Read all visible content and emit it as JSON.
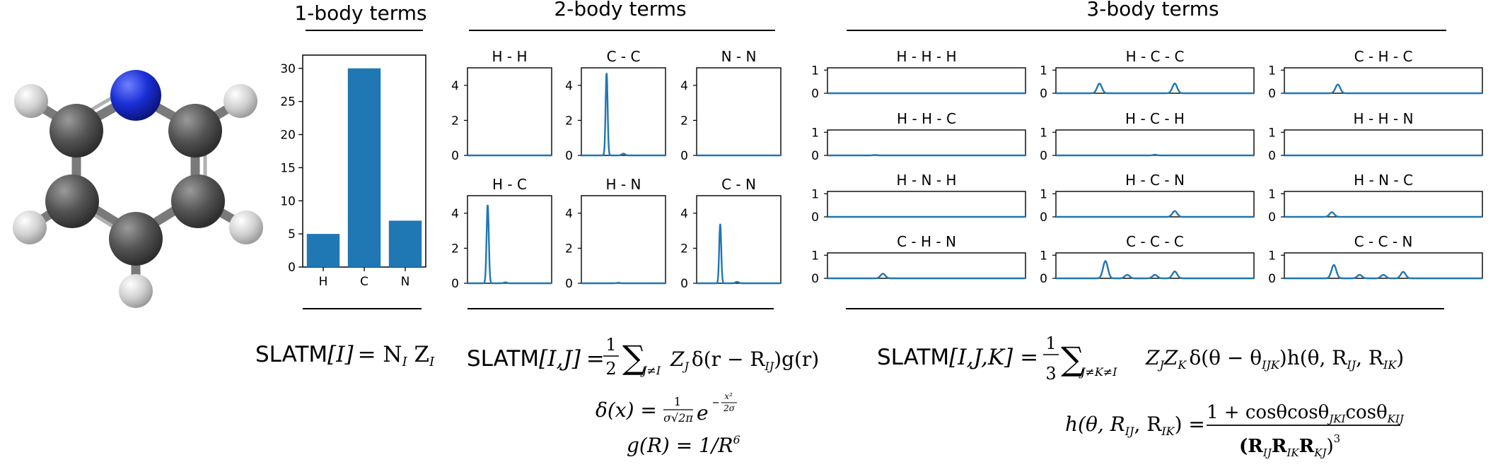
{
  "sections": {
    "one_body": "1-body terms",
    "two_body": "2-body terms",
    "three_body": "3-body terms"
  },
  "colors": {
    "line": "#1f77b4",
    "bar": "#1f77b4",
    "nitrogen": "#1a2fd6",
    "carbon": "#4a4a4a",
    "hydrogen": "#d6d6d6"
  },
  "molecule": {
    "name": "pyridine",
    "icon": "pyridine-ball-and-stick"
  },
  "chart_data": [
    {
      "type": "bar",
      "id": "one-body",
      "categories": [
        "H",
        "C",
        "N"
      ],
      "values": [
        5,
        30,
        7
      ],
      "ylim": [
        0,
        32
      ],
      "yticks": [
        "0",
        "5",
        "10",
        "15",
        "20",
        "25",
        "30"
      ],
      "ytick_values": [
        0,
        5,
        10,
        15,
        20,
        25,
        30
      ]
    },
    {
      "type": "line",
      "id": "two-body",
      "ylim": [
        0,
        5
      ],
      "yticks": [
        "0",
        "2",
        "4"
      ],
      "ytick_values": [
        0,
        2,
        4
      ],
      "panels": [
        {
          "title": "H - H",
          "peaks": []
        },
        {
          "title": "C - C",
          "peaks": [
            [
              0.3,
              4.7,
              0.012
            ],
            [
              0.5,
              0.1,
              0.02
            ]
          ]
        },
        {
          "title": "N - N",
          "peaks": []
        },
        {
          "title": "H - C",
          "peaks": [
            [
              0.24,
              4.5,
              0.013
            ],
            [
              0.45,
              0.05,
              0.02
            ]
          ]
        },
        {
          "title": "H - N",
          "peaks": [
            [
              0.44,
              0.03,
              0.02
            ]
          ]
        },
        {
          "title": "C - N",
          "peaks": [
            [
              0.28,
              3.4,
              0.012
            ],
            [
              0.48,
              0.08,
              0.02
            ]
          ]
        }
      ]
    },
    {
      "type": "line",
      "id": "three-body",
      "ylim": [
        0,
        1.1
      ],
      "yticks": [
        "1",
        "0"
      ],
      "ytick_values": [
        1,
        0
      ],
      "panels": [
        {
          "title": "H - H - H",
          "peaks": []
        },
        {
          "title": "H - C - C",
          "peaks": [
            [
              0.22,
              0.42,
              0.012
            ],
            [
              0.6,
              0.42,
              0.012
            ]
          ]
        },
        {
          "title": "C - H - C",
          "peaks": [
            [
              0.27,
              0.38,
              0.012
            ]
          ]
        },
        {
          "title": "H - H - C",
          "peaks": [
            [
              0.24,
              0.02,
              0.01
            ]
          ]
        },
        {
          "title": "H - C - H",
          "peaks": [
            [
              0.5,
              0.03,
              0.01
            ]
          ]
        },
        {
          "title": "H - H - N",
          "peaks": []
        },
        {
          "title": "H - N - H",
          "peaks": []
        },
        {
          "title": "H - C - N",
          "peaks": [
            [
              0.6,
              0.25,
              0.012
            ]
          ]
        },
        {
          "title": "H - N - C",
          "peaks": [
            [
              0.24,
              0.2,
              0.012
            ]
          ]
        },
        {
          "title": "C - H - N",
          "peaks": [
            [
              0.28,
              0.2,
              0.012
            ]
          ]
        },
        {
          "title": "C - C - C",
          "peaks": [
            [
              0.25,
              0.75,
              0.012
            ],
            [
              0.36,
              0.15,
              0.012
            ],
            [
              0.5,
              0.15,
              0.012
            ],
            [
              0.6,
              0.3,
              0.012
            ]
          ]
        },
        {
          "title": "C - C - N",
          "peaks": [
            [
              0.25,
              0.58,
              0.012
            ],
            [
              0.38,
              0.15,
              0.012
            ],
            [
              0.5,
              0.15,
              0.012
            ],
            [
              0.6,
              0.28,
              0.012
            ]
          ]
        }
      ]
    }
  ],
  "formulas": {
    "slatm_1": {
      "prefix": "SLATM",
      "arg": "[I]",
      "rhs": "= N",
      "sub1": "I",
      "z": " Z",
      "sub2": "I"
    },
    "slatm_2": {
      "prefix": "SLATM",
      "arg": "[I,J]",
      "eq": "=",
      "frac_num": "1",
      "frac_den": "2",
      "sum": "∑",
      "sum_sub": "J≠I",
      "body": "Z",
      "body_sub": "J",
      "rest": "δ(r − R",
      "rest_sub": "IJ",
      "tail": ")g(r)"
    },
    "delta": {
      "lhs": "δ(x) =",
      "num": "1",
      "den": "σ√2π",
      "exp_base": "e",
      "exp_num": "x²",
      "exp_den": "2σ"
    },
    "g": {
      "text": "g(R) = 1/R",
      "sup": "6"
    },
    "slatm_3": {
      "prefix": "SLATM",
      "arg": "[I,J,K]",
      "eq": "=",
      "frac_num": "1",
      "frac_den": "3",
      "sum": "∑",
      "sum_sub": "J≠K≠I",
      "body": "Z",
      "body_sub1": "J",
      "body_mid": "Z",
      "body_sub2": "K",
      "rest": "δ(θ − θ",
      "rest_sub": "IJK",
      "tail": ")h(θ, R",
      "t_sub1": "IJ",
      "t_mid": ", R",
      "t_sub2": "IK",
      "t_end": ")"
    },
    "h": {
      "lhs": "h(θ, R",
      "lhs_sub1": "IJ",
      "lhs_mid": ", R",
      "lhs_sub2": "IK",
      "lhs_end": ") =",
      "num": "1 + cosθcosθ",
      "num_sub1": "JKI",
      "num_mid": "cosθ",
      "num_sub2": "KIJ",
      "den_open": "(R",
      "den_sub1": "IJ",
      "den_r2": "R",
      "den_sub2": "IK",
      "den_r3": "R",
      "den_sub3": "KJ",
      "den_close": ")",
      "den_sup": "3"
    }
  }
}
